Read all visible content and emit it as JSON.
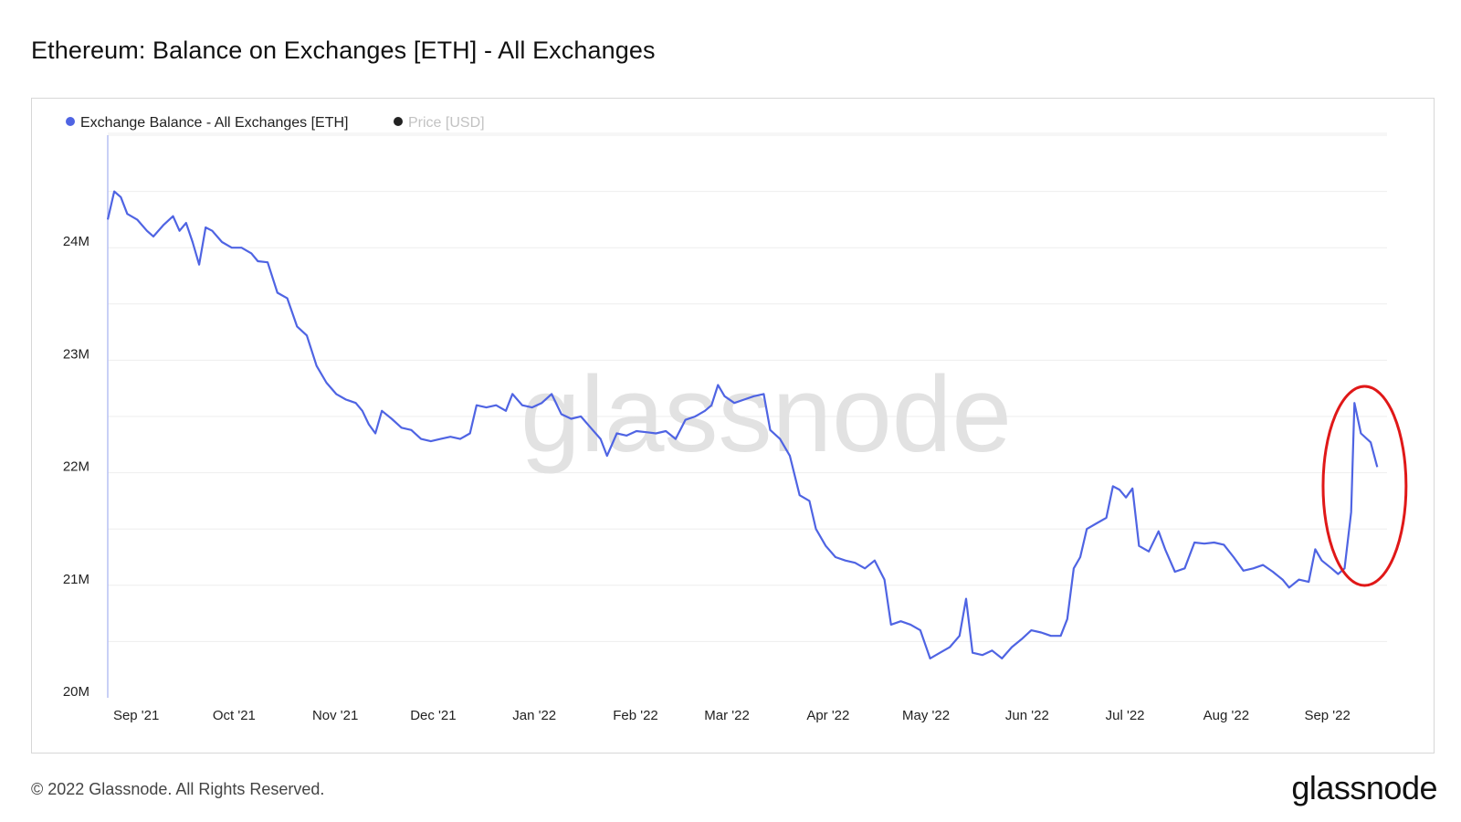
{
  "title": "Ethereum: Balance on Exchanges [ETH] - All Exchanges",
  "footer": {
    "copyright": "© 2022 Glassnode. All Rights Reserved.",
    "logo": "glassnode"
  },
  "watermark": "glassnode",
  "colors": {
    "series": "#4f64e3",
    "price": "#222222",
    "highlight": "#e01818",
    "grid": "#eeeeee"
  },
  "chart_data": {
    "type": "line",
    "legend": [
      {
        "label": "Exchange Balance - All Exchanges [ETH]",
        "color": "#4f64e3",
        "active": true
      },
      {
        "label": "Price [USD]",
        "color": "#222222",
        "active": false
      }
    ],
    "legend_position": "top-left",
    "grid": true,
    "x_ticks": [
      "Sep '21",
      "Oct '21",
      "Nov '21",
      "Dec '21",
      "Jan '22",
      "Feb '22",
      "Mar '22",
      "Apr '22",
      "May '22",
      "Jun '22",
      "Jul '22",
      "Aug '22",
      "Sep '22"
    ],
    "x_tick_dates": [
      "2021-09-01",
      "2021-10-01",
      "2021-11-01",
      "2021-12-01",
      "2022-01-01",
      "2022-02-01",
      "2022-03-01",
      "2022-04-01",
      "2022-05-01",
      "2022-06-01",
      "2022-07-01",
      "2022-08-01",
      "2022-09-01"
    ],
    "y_ticks": [
      "20M",
      "21M",
      "22M",
      "23M",
      "24M"
    ],
    "y_tick_values": [
      20000000,
      21000000,
      22000000,
      23000000,
      24000000
    ],
    "ylim": [
      20000000,
      25000000
    ],
    "xlim": [
      "2021-08-23",
      "2022-09-19"
    ],
    "series": [
      {
        "name": "Exchange Balance - All Exchanges [ETH]",
        "points": [
          [
            "2021-08-23",
            24.25
          ],
          [
            "2021-08-25",
            24.5
          ],
          [
            "2021-08-27",
            24.45
          ],
          [
            "2021-08-29",
            24.3
          ],
          [
            "2021-09-01",
            24.25
          ],
          [
            "2021-09-04",
            24.15
          ],
          [
            "2021-09-06",
            24.1
          ],
          [
            "2021-09-09",
            24.2
          ],
          [
            "2021-09-12",
            24.28
          ],
          [
            "2021-09-14",
            24.15
          ],
          [
            "2021-09-16",
            24.22
          ],
          [
            "2021-09-18",
            24.05
          ],
          [
            "2021-09-20",
            23.85
          ],
          [
            "2021-09-22",
            24.18
          ],
          [
            "2021-09-24",
            24.15
          ],
          [
            "2021-09-27",
            24.05
          ],
          [
            "2021-09-30",
            24.0
          ],
          [
            "2021-10-03",
            24.0
          ],
          [
            "2021-10-06",
            23.95
          ],
          [
            "2021-10-08",
            23.88
          ],
          [
            "2021-10-11",
            23.87
          ],
          [
            "2021-10-14",
            23.6
          ],
          [
            "2021-10-17",
            23.55
          ],
          [
            "2021-10-20",
            23.3
          ],
          [
            "2021-10-23",
            23.22
          ],
          [
            "2021-10-26",
            22.95
          ],
          [
            "2021-10-29",
            22.8
          ],
          [
            "2021-11-01",
            22.7
          ],
          [
            "2021-11-04",
            22.65
          ],
          [
            "2021-11-07",
            22.62
          ],
          [
            "2021-11-09",
            22.55
          ],
          [
            "2021-11-11",
            22.43
          ],
          [
            "2021-11-13",
            22.35
          ],
          [
            "2021-11-15",
            22.55
          ],
          [
            "2021-11-18",
            22.48
          ],
          [
            "2021-11-21",
            22.4
          ],
          [
            "2021-11-24",
            22.38
          ],
          [
            "2021-11-27",
            22.3
          ],
          [
            "2021-11-30",
            22.28
          ],
          [
            "2021-12-03",
            22.3
          ],
          [
            "2021-12-06",
            22.32
          ],
          [
            "2021-12-09",
            22.3
          ],
          [
            "2021-12-12",
            22.35
          ],
          [
            "2021-12-14",
            22.6
          ],
          [
            "2021-12-17",
            22.58
          ],
          [
            "2021-12-20",
            22.6
          ],
          [
            "2021-12-23",
            22.55
          ],
          [
            "2021-12-25",
            22.7
          ],
          [
            "2021-12-28",
            22.6
          ],
          [
            "2021-12-31",
            22.58
          ],
          [
            "2022-01-03",
            22.62
          ],
          [
            "2022-01-06",
            22.7
          ],
          [
            "2022-01-09",
            22.52
          ],
          [
            "2022-01-12",
            22.48
          ],
          [
            "2022-01-15",
            22.5
          ],
          [
            "2022-01-18",
            22.4
          ],
          [
            "2022-01-21",
            22.3
          ],
          [
            "2022-01-23",
            22.15
          ],
          [
            "2022-01-26",
            22.35
          ],
          [
            "2022-01-29",
            22.33
          ],
          [
            "2022-02-01",
            22.37
          ],
          [
            "2022-02-04",
            22.36
          ],
          [
            "2022-02-07",
            22.35
          ],
          [
            "2022-02-10",
            22.37
          ],
          [
            "2022-02-13",
            22.3
          ],
          [
            "2022-02-16",
            22.47
          ],
          [
            "2022-02-19",
            22.5
          ],
          [
            "2022-02-22",
            22.55
          ],
          [
            "2022-02-24",
            22.6
          ],
          [
            "2022-02-26",
            22.78
          ],
          [
            "2022-02-28",
            22.68
          ],
          [
            "2022-03-03",
            22.62
          ],
          [
            "2022-03-06",
            22.65
          ],
          [
            "2022-03-09",
            22.68
          ],
          [
            "2022-03-12",
            22.7
          ],
          [
            "2022-03-14",
            22.38
          ],
          [
            "2022-03-17",
            22.3
          ],
          [
            "2022-03-20",
            22.15
          ],
          [
            "2022-03-23",
            21.8
          ],
          [
            "2022-03-26",
            21.75
          ],
          [
            "2022-03-28",
            21.5
          ],
          [
            "2022-03-31",
            21.35
          ],
          [
            "2022-04-03",
            21.25
          ],
          [
            "2022-04-06",
            21.22
          ],
          [
            "2022-04-09",
            21.2
          ],
          [
            "2022-04-12",
            21.15
          ],
          [
            "2022-04-15",
            21.22
          ],
          [
            "2022-04-18",
            21.05
          ],
          [
            "2022-04-20",
            20.65
          ],
          [
            "2022-04-23",
            20.68
          ],
          [
            "2022-04-26",
            20.65
          ],
          [
            "2022-04-29",
            20.6
          ],
          [
            "2022-05-02",
            20.35
          ],
          [
            "2022-05-05",
            20.4
          ],
          [
            "2022-05-08",
            20.45
          ],
          [
            "2022-05-11",
            20.55
          ],
          [
            "2022-05-13",
            20.88
          ],
          [
            "2022-05-15",
            20.4
          ],
          [
            "2022-05-18",
            20.38
          ],
          [
            "2022-05-21",
            20.42
          ],
          [
            "2022-05-24",
            20.35
          ],
          [
            "2022-05-27",
            20.45
          ],
          [
            "2022-05-30",
            20.52
          ],
          [
            "2022-06-02",
            20.6
          ],
          [
            "2022-06-05",
            20.58
          ],
          [
            "2022-06-08",
            20.55
          ],
          [
            "2022-06-11",
            20.55
          ],
          [
            "2022-06-13",
            20.7
          ],
          [
            "2022-06-15",
            21.15
          ],
          [
            "2022-06-17",
            21.25
          ],
          [
            "2022-06-19",
            21.5
          ],
          [
            "2022-06-22",
            21.55
          ],
          [
            "2022-06-25",
            21.6
          ],
          [
            "2022-06-27",
            21.88
          ],
          [
            "2022-06-29",
            21.85
          ],
          [
            "2022-07-01",
            21.78
          ],
          [
            "2022-07-03",
            21.86
          ],
          [
            "2022-07-05",
            21.35
          ],
          [
            "2022-07-08",
            21.3
          ],
          [
            "2022-07-11",
            21.48
          ],
          [
            "2022-07-13",
            21.32
          ],
          [
            "2022-07-16",
            21.12
          ],
          [
            "2022-07-19",
            21.15
          ],
          [
            "2022-07-22",
            21.38
          ],
          [
            "2022-07-25",
            21.37
          ],
          [
            "2022-07-28",
            21.38
          ],
          [
            "2022-07-31",
            21.36
          ],
          [
            "2022-08-03",
            21.25
          ],
          [
            "2022-08-06",
            21.13
          ],
          [
            "2022-08-09",
            21.15
          ],
          [
            "2022-08-12",
            21.18
          ],
          [
            "2022-08-15",
            21.12
          ],
          [
            "2022-08-18",
            21.05
          ],
          [
            "2022-08-20",
            20.98
          ],
          [
            "2022-08-23",
            21.05
          ],
          [
            "2022-08-26",
            21.03
          ],
          [
            "2022-08-28",
            21.32
          ],
          [
            "2022-08-30",
            21.22
          ],
          [
            "2022-09-02",
            21.15
          ],
          [
            "2022-09-04",
            21.1
          ],
          [
            "2022-09-06",
            21.15
          ],
          [
            "2022-09-08",
            21.65
          ],
          [
            "2022-09-09",
            22.62
          ],
          [
            "2022-09-11",
            22.35
          ],
          [
            "2022-09-14",
            22.27
          ],
          [
            "2022-09-16",
            22.05
          ]
        ],
        "unit": "M"
      }
    ],
    "annotation": {
      "type": "ellipse",
      "color": "#e01818",
      "around": [
        "2022-09-05",
        "2022-09-17"
      ]
    }
  }
}
